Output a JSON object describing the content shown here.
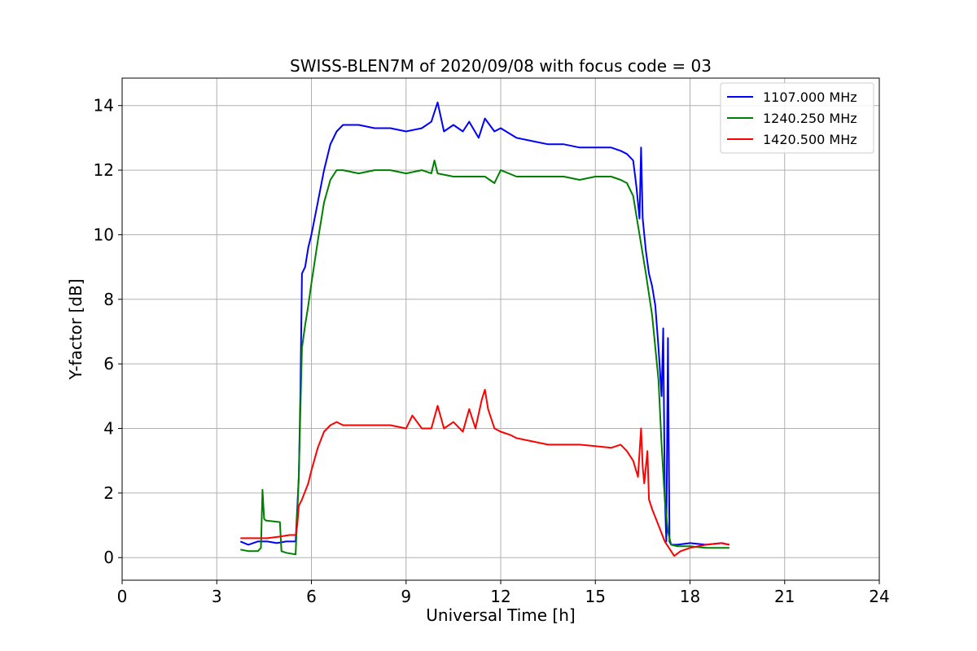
{
  "chart_data": {
    "type": "line",
    "title": "SWISS-BLEN7M of 2020/09/08 with focus code = 03",
    "xlabel": "Universal Time [h]",
    "ylabel": "Y-factor [dB]",
    "xlim": [
      0,
      24
    ],
    "ylim": [
      -0.7,
      14.85
    ],
    "xticks": [
      0,
      3,
      6,
      9,
      12,
      15,
      18,
      21,
      24
    ],
    "xtick_labels": [
      "0",
      "3",
      "6",
      "9",
      "12",
      "15",
      "18",
      "21",
      "24"
    ],
    "yticks": [
      0,
      2,
      4,
      6,
      8,
      10,
      12,
      14
    ],
    "ytick_labels": [
      "0",
      "2",
      "4",
      "6",
      "8",
      "10",
      "12",
      "14"
    ],
    "grid": true,
    "legend_position": "top-right",
    "series": [
      {
        "name": "1107.000 MHz",
        "color": "#0000ff",
        "x": [
          3.75,
          4.0,
          4.3,
          4.6,
          4.9,
          5.2,
          5.5,
          5.6,
          5.65,
          5.7,
          5.8,
          5.9,
          6.0,
          6.2,
          6.4,
          6.6,
          6.8,
          7.0,
          7.5,
          8.0,
          8.5,
          9.0,
          9.5,
          9.8,
          10.0,
          10.2,
          10.5,
          10.8,
          11.0,
          11.3,
          11.5,
          11.8,
          12.0,
          12.5,
          13.0,
          13.5,
          14.0,
          14.5,
          15.0,
          15.5,
          15.8,
          16.0,
          16.2,
          16.3,
          16.4,
          16.45,
          16.5,
          16.6,
          16.7,
          16.8,
          16.9,
          17.0,
          17.1,
          17.15,
          17.2,
          17.25,
          17.3,
          17.35,
          17.4,
          17.45,
          17.6,
          18.0,
          18.5,
          19.0,
          19.25
        ],
        "y": [
          0.5,
          0.4,
          0.5,
          0.5,
          0.45,
          0.5,
          0.5,
          2.5,
          5.0,
          8.8,
          9.0,
          9.6,
          10.0,
          11.0,
          12.0,
          12.8,
          13.2,
          13.4,
          13.4,
          13.3,
          13.3,
          13.2,
          13.3,
          13.5,
          14.1,
          13.2,
          13.4,
          13.2,
          13.5,
          13.0,
          13.6,
          13.2,
          13.3,
          13.0,
          12.9,
          12.8,
          12.8,
          12.7,
          12.7,
          12.7,
          12.6,
          12.5,
          12.3,
          11.5,
          10.5,
          12.7,
          10.5,
          9.5,
          8.8,
          8.4,
          7.8,
          6.5,
          5.0,
          7.1,
          2.0,
          0.5,
          6.8,
          0.5,
          0.4,
          0.4,
          0.4,
          0.45,
          0.4,
          0.45,
          0.4
        ]
      },
      {
        "name": "1240.250 MHz",
        "color": "#008000",
        "x": [
          3.75,
          4.0,
          4.3,
          4.4,
          4.45,
          4.5,
          4.55,
          5.0,
          5.05,
          5.2,
          5.5,
          5.6,
          5.65,
          5.7,
          5.8,
          5.9,
          6.0,
          6.2,
          6.4,
          6.6,
          6.8,
          7.0,
          7.5,
          8.0,
          8.5,
          9.0,
          9.5,
          9.8,
          9.9,
          10.0,
          10.5,
          11.0,
          11.5,
          11.8,
          12.0,
          12.5,
          13.0,
          13.5,
          14.0,
          14.5,
          15.0,
          15.5,
          15.8,
          16.0,
          16.2,
          16.4,
          16.6,
          16.8,
          17.0,
          17.1,
          17.2,
          17.3,
          17.4,
          17.6,
          18.0,
          18.5,
          19.0,
          19.25
        ],
        "y": [
          0.25,
          0.2,
          0.2,
          0.3,
          2.1,
          1.2,
          1.15,
          1.1,
          0.2,
          0.15,
          0.1,
          2.5,
          4.5,
          6.5,
          7.2,
          7.8,
          8.5,
          9.8,
          11.0,
          11.7,
          12.0,
          12.0,
          11.9,
          12.0,
          12.0,
          11.9,
          12.0,
          11.9,
          12.3,
          11.9,
          11.8,
          11.8,
          11.8,
          11.6,
          12.0,
          11.8,
          11.8,
          11.8,
          11.8,
          11.7,
          11.8,
          11.8,
          11.7,
          11.6,
          11.2,
          10.0,
          8.8,
          7.5,
          5.5,
          3.5,
          1.8,
          0.8,
          0.4,
          0.35,
          0.35,
          0.3,
          0.3,
          0.3
        ]
      },
      {
        "name": "1420.500 MHz",
        "color": "#ff0000",
        "x": [
          3.75,
          4.0,
          4.3,
          4.6,
          5.0,
          5.3,
          5.5,
          5.55,
          5.6,
          5.7,
          5.9,
          6.0,
          6.2,
          6.4,
          6.6,
          6.8,
          7.0,
          7.5,
          8.0,
          8.5,
          9.0,
          9.2,
          9.5,
          9.8,
          10.0,
          10.2,
          10.5,
          10.8,
          11.0,
          11.2,
          11.4,
          11.5,
          11.6,
          11.8,
          12.0,
          12.3,
          12.5,
          13.0,
          13.5,
          14.0,
          14.5,
          15.0,
          15.5,
          15.8,
          16.0,
          16.2,
          16.35,
          16.45,
          16.5,
          16.55,
          16.65,
          16.7,
          16.8,
          17.0,
          17.2,
          17.4,
          17.5,
          17.7,
          18.0,
          18.5,
          19.0,
          19.25
        ],
        "y": [
          0.6,
          0.6,
          0.6,
          0.6,
          0.65,
          0.7,
          0.7,
          1.0,
          1.6,
          1.8,
          2.3,
          2.7,
          3.4,
          3.9,
          4.1,
          4.2,
          4.1,
          4.1,
          4.1,
          4.1,
          4.0,
          4.4,
          4.0,
          4.0,
          4.7,
          4.0,
          4.2,
          3.9,
          4.6,
          4.0,
          4.9,
          5.2,
          4.6,
          4.0,
          3.9,
          3.8,
          3.7,
          3.6,
          3.5,
          3.5,
          3.5,
          3.45,
          3.4,
          3.5,
          3.3,
          3.0,
          2.5,
          4.0,
          2.8,
          2.3,
          3.3,
          1.8,
          1.5,
          1.0,
          0.5,
          0.2,
          0.05,
          0.2,
          0.3,
          0.4,
          0.45,
          0.4
        ]
      }
    ]
  }
}
